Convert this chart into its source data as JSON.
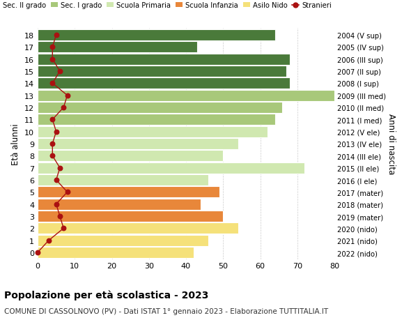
{
  "ages": [
    0,
    1,
    2,
    3,
    4,
    5,
    6,
    7,
    8,
    9,
    10,
    11,
    12,
    13,
    14,
    15,
    16,
    17,
    18
  ],
  "right_labels": [
    "2022 (nido)",
    "2021 (nido)",
    "2020 (nido)",
    "2019 (mater)",
    "2018 (mater)",
    "2017 (mater)",
    "2016 (I ele)",
    "2015 (II ele)",
    "2014 (III ele)",
    "2013 (IV ele)",
    "2012 (V ele)",
    "2011 (I med)",
    "2010 (II med)",
    "2009 (III med)",
    "2008 (I sup)",
    "2007 (II sup)",
    "2006 (III sup)",
    "2005 (IV sup)",
    "2004 (V sup)"
  ],
  "bar_values": [
    42,
    46,
    54,
    50,
    44,
    49,
    46,
    72,
    50,
    54,
    62,
    64,
    66,
    80,
    68,
    67,
    68,
    43,
    64
  ],
  "bar_colors": [
    "#f5e17a",
    "#f5e17a",
    "#f5e17a",
    "#e8873a",
    "#e8873a",
    "#e8873a",
    "#d0e8b0",
    "#d0e8b0",
    "#d0e8b0",
    "#d0e8b0",
    "#d0e8b0",
    "#a8c87a",
    "#a8c87a",
    "#a8c87a",
    "#4a7a3a",
    "#4a7a3a",
    "#4a7a3a",
    "#4a7a3a",
    "#4a7a3a"
  ],
  "stranieri_values": [
    0,
    3,
    7,
    6,
    5,
    8,
    5,
    6,
    4,
    4,
    5,
    4,
    7,
    8,
    4,
    6,
    4,
    4,
    5
  ],
  "legend_labels": [
    "Sec. II grado",
    "Sec. I grado",
    "Scuola Primaria",
    "Scuola Infanzia",
    "Asilo Nido",
    "Stranieri"
  ],
  "legend_colors": [
    "#4a7a3a",
    "#a8c87a",
    "#d0e8b0",
    "#e8873a",
    "#f5e17a",
    "#aa1111"
  ],
  "title": "Popolazione per età scolastica - 2023",
  "subtitle": "COMUNE DI CASSOLNOVO (PV) - Dati ISTAT 1° gennaio 2023 - Elaborazione TUTTITALIA.IT",
  "ylabel": "Età alunni",
  "right_ylabel": "Anni di nascita",
  "xlim": [
    0,
    80
  ],
  "xticks": [
    0,
    10,
    20,
    30,
    40,
    50,
    60,
    70,
    80
  ],
  "bg_color": "#ffffff",
  "grid_color": "#cccccc"
}
